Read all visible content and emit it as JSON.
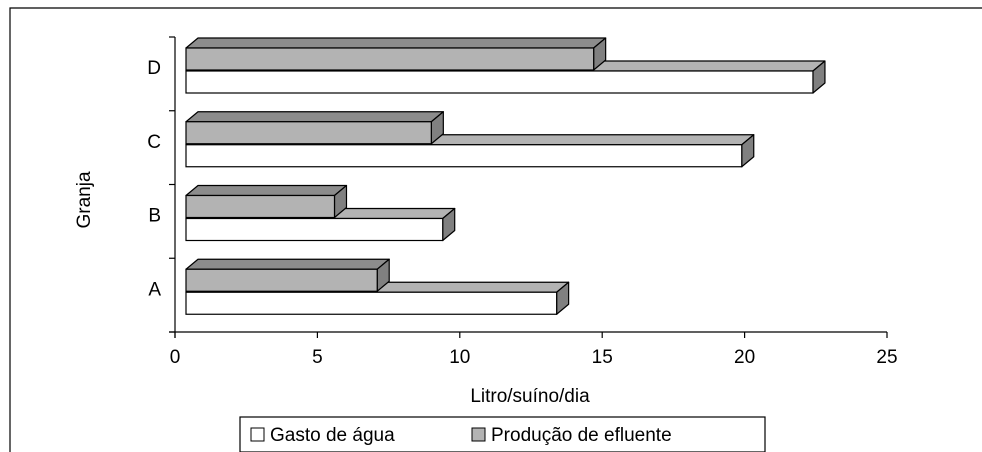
{
  "chart_data": {
    "type": "bar",
    "orientation": "horizontal",
    "style": "3d",
    "categories": [
      "A",
      "B",
      "C",
      "D"
    ],
    "series": [
      {
        "name": "Gasto de água",
        "values": [
          13.4,
          9.4,
          19.9,
          22.4
        ]
      },
      {
        "name": "Produção de efluente",
        "values": [
          7.1,
          5.6,
          9.0,
          14.7
        ]
      }
    ],
    "colors": {
      "Gasto de água": "#ffffff",
      "Produção de efluente": "#b3b3b3"
    },
    "xlabel": "Litro/suíno/dia",
    "ylabel": "Granja",
    "xlim": [
      0,
      25
    ],
    "x_ticks": [
      "0",
      "5",
      "10",
      "15",
      "20",
      "25"
    ],
    "grid": false,
    "legend_position": "bottom"
  }
}
